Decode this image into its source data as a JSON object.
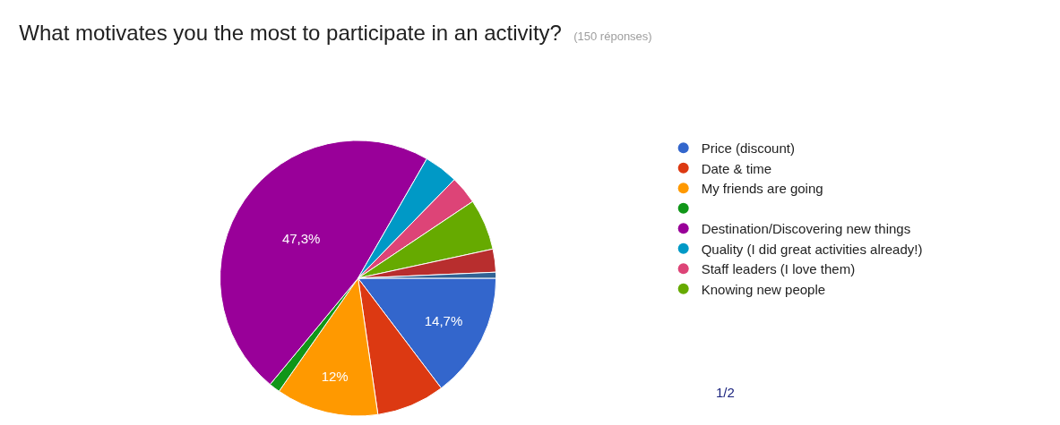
{
  "chart_data": {
    "type": "pie",
    "title": "What motivates you the most to participate in an activity?",
    "subtitle": "(150 réponses)",
    "categories": [
      "Price (discount)",
      "Date & time",
      "My friends are going",
      null,
      "Destination/Discovering new things",
      "Quality (I did great activities already!)",
      "Staff leaders (I love them)",
      "Knowing new people",
      null,
      null
    ],
    "values": [
      14.7,
      8,
      12,
      1.3,
      47.3,
      4,
      3.3,
      6,
      2.7,
      0.7
    ],
    "value_labels": [
      "14,7%",
      null,
      "12%",
      null,
      "47,3%",
      null,
      null,
      null,
      null,
      null
    ],
    "colors": [
      "#3366cc",
      "#dc3912",
      "#ff9900",
      "#109618",
      "#990099",
      "#0099c6",
      "#dd4477",
      "#66aa00",
      "#b82e2e",
      "#316395"
    ],
    "legend": "right",
    "annotations": [
      "1/2"
    ]
  }
}
